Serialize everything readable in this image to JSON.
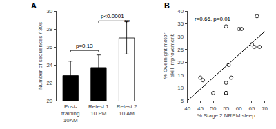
{
  "chart_data": [
    {
      "type": "bar",
      "title": "A",
      "categories": [
        "Post-\ntraining\n10AM",
        "Retest 1\n10 PM",
        "Retest 2\n10 AM"
      ],
      "values": [
        22.8,
        23.7,
        27.0
      ],
      "errors": [
        1.6,
        1.4,
        1.8
      ],
      "colors": [
        "black",
        "black",
        "white"
      ],
      "ylabel": "Number of sequences / 30s",
      "ylim": [
        20,
        30
      ],
      "yticks": [
        20,
        22,
        24,
        26,
        28,
        30
      ],
      "grid": false,
      "annotations": [
        {
          "text": "p=0.13",
          "between": [
            "Post-\ntraining\n10AM",
            "Retest 1\n10 PM"
          ],
          "y": 25.6
        },
        {
          "text": "p<0.0001",
          "between": [
            "Retest 1\n10 PM",
            "Retest 2\n10 AM"
          ],
          "y": 28.9
        },
        {
          "text": "***",
          "at": "Retest 2\n10 AM",
          "y": 28.6
        }
      ]
    },
    {
      "type": "scatter",
      "title": "B",
      "series": [
        {
          "type": "scatter",
          "marker": "circle-open",
          "color": "black",
          "x": [
            45,
            46,
            50,
            55,
            55,
            55,
            55,
            56,
            57,
            60,
            61,
            65,
            66,
            67,
            68
          ],
          "values": [
            14,
            13,
            8,
            34,
            12,
            8,
            8,
            19,
            14,
            33,
            33,
            27,
            26,
            38,
            26
          ]
        },
        {
          "type": "line",
          "color": "black",
          "x": [
            40,
            70
          ],
          "values": [
            5.0,
            32.0
          ]
        }
      ],
      "xlabel": "% Stage 2 NREM sleep",
      "ylabel": "% Overnight motor\nskill improvement",
      "xlim": [
        40,
        70
      ],
      "ylim": [
        5,
        40
      ],
      "xticks": [
        40,
        45,
        50,
        55,
        60,
        65,
        70
      ],
      "yticks": [
        5,
        10,
        15,
        20,
        25,
        30,
        35,
        40
      ],
      "grid": false,
      "annotations": [
        {
          "text": "r=0.66, p=0.01"
        }
      ]
    }
  ]
}
